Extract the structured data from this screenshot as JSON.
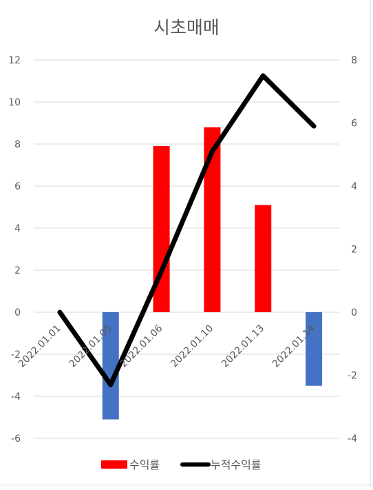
{
  "chart_data": {
    "type": "bar",
    "title": "시초매매",
    "categories": [
      "2022.01.01",
      "2022.01.05",
      "2022.01.06",
      "2022.01.10",
      "2022.01.13",
      "2022.01.14"
    ],
    "series": [
      {
        "name": "수익률",
        "type": "bar",
        "axis": "left",
        "values": [
          null,
          -5.1,
          7.9,
          8.8,
          5.1,
          -3.5
        ],
        "positive_color": "#ff0000",
        "negative_color": "#4472c4"
      },
      {
        "name": "누적수익률",
        "type": "line",
        "axis": "right",
        "values": [
          0,
          -2.3,
          1.3,
          5.1,
          7.5,
          5.9
        ],
        "color": "#000000"
      }
    ],
    "y_left": {
      "min": -6,
      "max": 12,
      "ticks": [
        "12",
        "10",
        "8",
        "6",
        "4",
        "2",
        "0",
        "-2",
        "-4",
        "-6"
      ]
    },
    "y_right": {
      "min": -4,
      "max": 8,
      "ticks": [
        "8",
        "6",
        "4",
        "2",
        "0",
        "-2",
        "-4"
      ]
    },
    "grid": true,
    "legend_position": "bottom",
    "gridline_color": "#d9d9d9"
  }
}
